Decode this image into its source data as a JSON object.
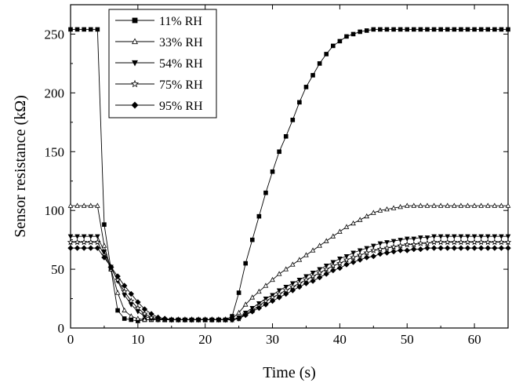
{
  "chart_data": {
    "type": "line",
    "title": "",
    "xlabel": "Time (s)",
    "ylabel": "Sensor resistance (kΩ)",
    "xlim": [
      0,
      65
    ],
    "ylim": [
      0,
      275
    ],
    "xticks": [
      0,
      10,
      20,
      30,
      40,
      50,
      60
    ],
    "yticks": [
      0,
      50,
      100,
      150,
      200,
      250
    ],
    "xtick_labels": [
      "0",
      "10",
      "20",
      "30",
      "40",
      "50",
      "60"
    ],
    "ytick_labels": [
      "0",
      "50",
      "100",
      "150",
      "200",
      "250"
    ],
    "grid": false,
    "legend_position": "top-left",
    "series": [
      {
        "name": "11% RH",
        "marker": "square",
        "filled": true,
        "x": [
          0,
          1,
          2,
          3,
          4,
          5,
          6,
          7,
          8,
          9,
          10,
          11,
          12,
          13,
          14,
          15,
          16,
          17,
          18,
          19,
          20,
          21,
          22,
          23,
          24,
          25,
          26,
          27,
          28,
          29,
          30,
          31,
          32,
          33,
          34,
          35,
          36,
          37,
          38,
          39,
          40,
          41,
          42,
          43,
          44,
          45,
          46,
          47,
          48,
          49,
          50,
          51,
          52,
          53,
          54,
          55,
          56,
          57,
          58,
          59,
          60,
          61,
          62,
          63,
          64,
          65
        ],
        "y": [
          254,
          254,
          254,
          254,
          254,
          88,
          50,
          15,
          8,
          7,
          6,
          7,
          7,
          7,
          7,
          7,
          7,
          7,
          7,
          7,
          7,
          7,
          7,
          7,
          10,
          30,
          55,
          75,
          95,
          115,
          133,
          150,
          163,
          177,
          192,
          205,
          215,
          225,
          233,
          240,
          244,
          248,
          250,
          252,
          253,
          254,
          254,
          254,
          254,
          254,
          254,
          254,
          254,
          254,
          254,
          254,
          254,
          254,
          254,
          254,
          254,
          254,
          254,
          254,
          254,
          254
        ]
      },
      {
        "name": "33% RH",
        "marker": "triangle-up",
        "filled": false,
        "x": [
          0,
          1,
          2,
          3,
          4,
          5,
          6,
          7,
          8,
          9,
          10,
          11,
          12,
          13,
          14,
          15,
          16,
          17,
          18,
          19,
          20,
          21,
          22,
          23,
          24,
          25,
          26,
          27,
          28,
          29,
          30,
          31,
          32,
          33,
          34,
          35,
          36,
          37,
          38,
          39,
          40,
          41,
          42,
          43,
          44,
          45,
          46,
          47,
          48,
          49,
          50,
          51,
          52,
          53,
          54,
          55,
          56,
          57,
          58,
          59,
          60,
          61,
          62,
          63,
          64,
          65
        ],
        "y": [
          104,
          104,
          104,
          104,
          104,
          70,
          50,
          30,
          15,
          10,
          8,
          7,
          7,
          7,
          7,
          7,
          7,
          7,
          7,
          7,
          7,
          7,
          7,
          7,
          8,
          13,
          20,
          26,
          31,
          36,
          41,
          46,
          50,
          54,
          58,
          62,
          66,
          70,
          74,
          78,
          82,
          86,
          89,
          92,
          95,
          98,
          100,
          101,
          102,
          103,
          104,
          104,
          104,
          104,
          104,
          104,
          104,
          104,
          104,
          104,
          104,
          104,
          104,
          104,
          104,
          104
        ]
      },
      {
        "name": "54% RH",
        "marker": "triangle-down",
        "filled": true,
        "x": [
          0,
          1,
          2,
          3,
          4,
          5,
          6,
          7,
          8,
          9,
          10,
          11,
          12,
          13,
          14,
          15,
          16,
          17,
          18,
          19,
          20,
          21,
          22,
          23,
          24,
          25,
          26,
          27,
          28,
          29,
          30,
          31,
          32,
          33,
          34,
          35,
          36,
          37,
          38,
          39,
          40,
          41,
          42,
          43,
          44,
          45,
          46,
          47,
          48,
          49,
          50,
          51,
          52,
          53,
          54,
          55,
          56,
          57,
          58,
          59,
          60,
          61,
          62,
          63,
          64,
          65
        ],
        "y": [
          78,
          78,
          78,
          78,
          78,
          65,
          52,
          40,
          28,
          20,
          14,
          10,
          8,
          7,
          7,
          7,
          7,
          7,
          7,
          7,
          7,
          7,
          7,
          7,
          7,
          9,
          13,
          17,
          21,
          25,
          28,
          32,
          35,
          38,
          41,
          44,
          47,
          50,
          53,
          56,
          59,
          61,
          64,
          66,
          68,
          70,
          72,
          73,
          74,
          75,
          76,
          76,
          77,
          77,
          78,
          78,
          78,
          78,
          78,
          78,
          78,
          78,
          78,
          78,
          78,
          78
        ]
      },
      {
        "name": "75% RH",
        "marker": "star",
        "filled": false,
        "x": [
          0,
          1,
          2,
          3,
          4,
          5,
          6,
          7,
          8,
          9,
          10,
          11,
          12,
          13,
          14,
          15,
          16,
          17,
          18,
          19,
          20,
          21,
          22,
          23,
          24,
          25,
          26,
          27,
          28,
          29,
          30,
          31,
          32,
          33,
          34,
          35,
          36,
          37,
          38,
          39,
          40,
          41,
          42,
          43,
          44,
          45,
          46,
          47,
          48,
          49,
          50,
          51,
          52,
          53,
          54,
          55,
          56,
          57,
          58,
          59,
          60,
          61,
          62,
          63,
          64,
          65
        ],
        "y": [
          73,
          73,
          73,
          73,
          73,
          62,
          51,
          41,
          31,
          23,
          17,
          12,
          9,
          8,
          7,
          7,
          7,
          7,
          7,
          7,
          7,
          7,
          7,
          7,
          7,
          8,
          12,
          15,
          19,
          23,
          26,
          29,
          32,
          35,
          38,
          41,
          44,
          47,
          50,
          53,
          55,
          58,
          60,
          62,
          64,
          66,
          67,
          68,
          69,
          70,
          71,
          71,
          72,
          72,
          73,
          73,
          73,
          73,
          73,
          73,
          73,
          73,
          73,
          73,
          73,
          73
        ]
      },
      {
        "name": "95% RH",
        "marker": "diamond",
        "filled": true,
        "x": [
          0,
          1,
          2,
          3,
          4,
          5,
          6,
          7,
          8,
          9,
          10,
          11,
          12,
          13,
          14,
          15,
          16,
          17,
          18,
          19,
          20,
          21,
          22,
          23,
          24,
          25,
          26,
          27,
          28,
          29,
          30,
          31,
          32,
          33,
          34,
          35,
          36,
          37,
          38,
          39,
          40,
          41,
          42,
          43,
          44,
          45,
          46,
          47,
          48,
          49,
          50,
          51,
          52,
          53,
          54,
          55,
          56,
          57,
          58,
          59,
          60,
          61,
          62,
          63,
          64,
          65
        ],
        "y": [
          68,
          68,
          68,
          68,
          68,
          60,
          52,
          44,
          36,
          29,
          22,
          16,
          12,
          9,
          8,
          7,
          7,
          7,
          7,
          7,
          7,
          7,
          7,
          7,
          7,
          8,
          11,
          14,
          17,
          20,
          23,
          26,
          29,
          32,
          35,
          38,
          40,
          43,
          46,
          49,
          51,
          54,
          56,
          58,
          60,
          61,
          63,
          64,
          65,
          66,
          66,
          67,
          67,
          68,
          68,
          68,
          68,
          68,
          68,
          68,
          68,
          68,
          68,
          68,
          68,
          68
        ]
      }
    ]
  }
}
